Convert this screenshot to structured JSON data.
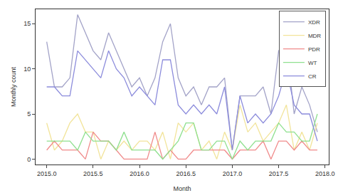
{
  "chart_data": {
    "type": "line",
    "x_label": "Month",
    "y_label": "Monthly count",
    "x": [
      2015,
      2015.083,
      2015.167,
      2015.25,
      2015.333,
      2015.417,
      2015.5,
      2015.583,
      2015.667,
      2015.75,
      2015.833,
      2015.917,
      2016,
      2016.083,
      2016.167,
      2016.25,
      2016.333,
      2016.417,
      2016.5,
      2016.583,
      2016.667,
      2016.75,
      2016.833,
      2016.917,
      2017,
      2017.083,
      2017.167,
      2017.25,
      2017.333,
      2017.417,
      2017.5,
      2017.583,
      2017.667,
      2017.75,
      2017.833,
      2017.917
    ],
    "xlim": [
      2014.88,
      2018.04
    ],
    "xticks": [
      {
        "value": 2015,
        "label": "2015.0"
      },
      {
        "value": 2015.5,
        "label": "2015.5"
      },
      {
        "value": 2016,
        "label": "2016.0"
      },
      {
        "value": 2016.5,
        "label": "2016.5"
      },
      {
        "value": 2017,
        "label": "2017.0"
      },
      {
        "value": 2017.5,
        "label": "2017.5"
      },
      {
        "value": 2018,
        "label": "2018.0"
      }
    ],
    "ylim": [
      -0.6,
      16.6
    ],
    "yticks": [
      0,
      5,
      10,
      15
    ],
    "grid": false,
    "legend": "top right",
    "series": [
      {
        "name": "XDR",
        "color": "#a3a3c8",
        "values": [
          13,
          8,
          8,
          9,
          16,
          14,
          12,
          11,
          14,
          12,
          10,
          8,
          9,
          7,
          9,
          13,
          15,
          9,
          7,
          8,
          6,
          8,
          8,
          9,
          1,
          7,
          7,
          7,
          8,
          5,
          12,
          13,
          5,
          8,
          6,
          3
        ]
      },
      {
        "name": "MDR",
        "color": "#f2e49a",
        "values": [
          4,
          1,
          2,
          4,
          5,
          3,
          3,
          0,
          2,
          1,
          2,
          1,
          2,
          2,
          1,
          3,
          0,
          4,
          3,
          4,
          1,
          2,
          0,
          3,
          1,
          6,
          3,
          4,
          2,
          3,
          4,
          6,
          1,
          3,
          1,
          4
        ]
      },
      {
        "name": "PDR",
        "color": "#f08a8a",
        "values": [
          1,
          2,
          1,
          1,
          1,
          0,
          3,
          2,
          2,
          1,
          0,
          0,
          0,
          0,
          3,
          0,
          1,
          0,
          0,
          1,
          1,
          1,
          1,
          1,
          0,
          1,
          1,
          1,
          2,
          0,
          2,
          2,
          1,
          2,
          1,
          1
        ]
      },
      {
        "name": "WT",
        "color": "#8fe08f",
        "values": [
          2,
          2,
          2,
          2,
          1,
          3,
          2,
          2,
          2,
          1,
          3,
          1,
          1,
          1,
          1,
          0,
          1,
          2,
          4,
          4,
          1,
          1,
          2,
          2,
          0,
          2,
          1,
          2,
          2,
          2,
          4,
          3,
          3,
          2,
          2,
          5
        ]
      },
      {
        "name": "CR",
        "color": "#8c8cdc",
        "values": [
          8,
          8,
          7,
          7,
          12,
          11,
          10,
          9,
          12,
          10,
          9,
          7,
          8,
          7,
          6,
          11,
          11,
          6,
          5,
          6,
          5,
          6,
          5,
          8,
          1,
          7,
          4,
          5,
          4,
          5,
          7,
          10,
          6,
          5,
          5,
          2
        ]
      }
    ]
  }
}
